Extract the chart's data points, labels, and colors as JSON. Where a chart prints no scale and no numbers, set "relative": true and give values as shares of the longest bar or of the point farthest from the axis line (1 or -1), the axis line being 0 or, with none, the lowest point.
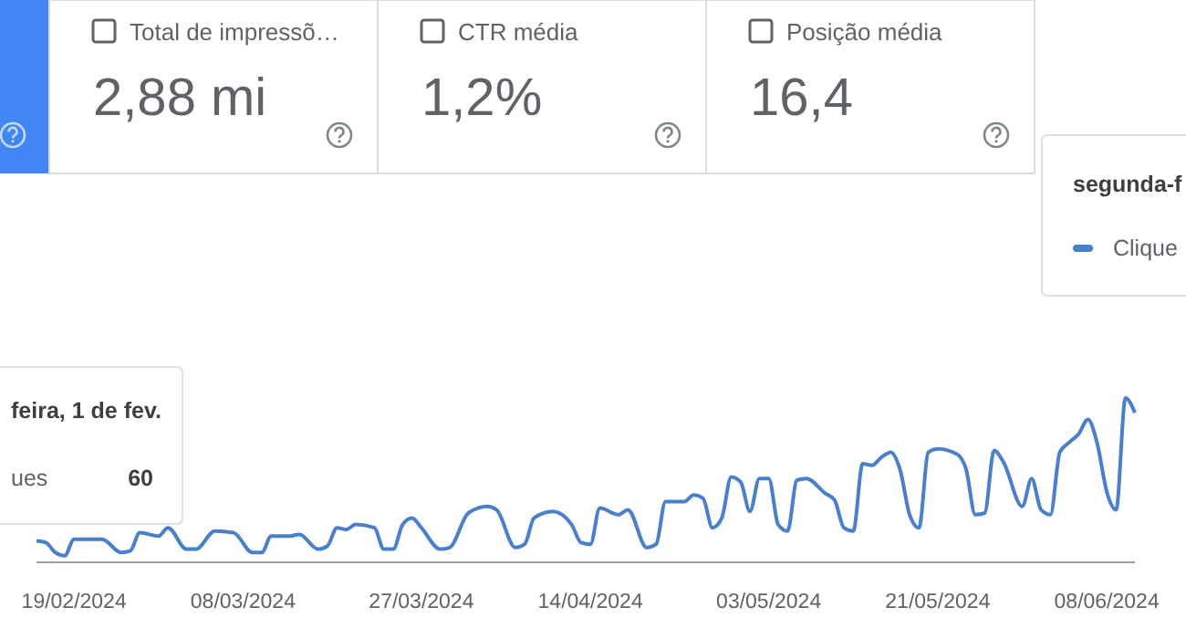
{
  "chart_data": {
    "type": "line",
    "relative": true,
    "xlim": [
      "2024-02-15",
      "2024-06-11"
    ],
    "xticks": [
      {
        "value": "2024-02-19",
        "label": "19/02/2024"
      },
      {
        "value": "2024-03-08",
        "label": "08/03/2024"
      },
      {
        "value": "2024-03-27",
        "label": "27/03/2024"
      },
      {
        "value": "2024-04-14",
        "label": "14/04/2024"
      },
      {
        "value": "2024-05-03",
        "label": "03/05/2024"
      },
      {
        "value": "2024-05-21",
        "label": "21/05/2024"
      },
      {
        "value": "2024-06-08",
        "label": "08/06/2024"
      }
    ],
    "annotations": [
      "Total de impressõ…",
      "2,88 mi",
      "CTR média",
      "1,2%",
      "Posição média",
      "16,4",
      "feira, 1 de fev.",
      "ues",
      "60",
      "segunda-f",
      "Clique"
    ],
    "series": [
      {
        "color": "#4a7fcb",
        "x": [
          "2024-02-15",
          "2024-02-16",
          "2024-02-17",
          "2024-02-18",
          "2024-02-19",
          "2024-02-22",
          "2024-02-24",
          "2024-02-25",
          "2024-02-26",
          "2024-02-28",
          "2024-02-29",
          "2024-03-02",
          "2024-03-03",
          "2024-03-05",
          "2024-03-07",
          "2024-03-09",
          "2024-03-10",
          "2024-03-11",
          "2024-03-13",
          "2024-03-14",
          "2024-03-16",
          "2024-03-17",
          "2024-03-18",
          "2024-03-19",
          "2024-03-20",
          "2024-03-22",
          "2024-03-23",
          "2024-03-24",
          "2024-03-25",
          "2024-03-26",
          "2024-03-27",
          "2024-03-29",
          "2024-03-30",
          "2024-04-01",
          "2024-04-03",
          "2024-04-04",
          "2024-04-06",
          "2024-04-07",
          "2024-04-08",
          "2024-04-10",
          "2024-04-12",
          "2024-04-13",
          "2024-04-14",
          "2024-04-15",
          "2024-04-17",
          "2024-04-18",
          "2024-04-20",
          "2024-04-21",
          "2024-04-22",
          "2024-04-24",
          "2024-04-25",
          "2024-04-26",
          "2024-04-27",
          "2024-04-28",
          "2024-04-29",
          "2024-04-30",
          "2024-05-01",
          "2024-05-02",
          "2024-05-03",
          "2024-05-04",
          "2024-05-05",
          "2024-05-06",
          "2024-05-07",
          "2024-05-09",
          "2024-05-10",
          "2024-05-11",
          "2024-05-12",
          "2024-05-13",
          "2024-05-14",
          "2024-05-15",
          "2024-05-16",
          "2024-05-17",
          "2024-05-18",
          "2024-05-19",
          "2024-05-20",
          "2024-05-21",
          "2024-05-23",
          "2024-05-24",
          "2024-05-25",
          "2024-05-26",
          "2024-05-27",
          "2024-05-28",
          "2024-05-30",
          "2024-05-31",
          "2024-06-01",
          "2024-06-02",
          "2024-06-03",
          "2024-06-04",
          "2024-06-05",
          "2024-06-06",
          "2024-06-07",
          "2024-06-08",
          "2024-06-09",
          "2024-06-10",
          "2024-06-11"
        ],
        "values": [
          0.13,
          0.12,
          0.06,
          0.04,
          0.14,
          0.14,
          0.06,
          0.07,
          0.18,
          0.16,
          0.21,
          0.08,
          0.08,
          0.19,
          0.18,
          0.06,
          0.06,
          0.16,
          0.16,
          0.17,
          0.08,
          0.1,
          0.21,
          0.2,
          0.23,
          0.21,
          0.08,
          0.08,
          0.23,
          0.27,
          0.21,
          0.08,
          0.09,
          0.3,
          0.34,
          0.32,
          0.09,
          0.11,
          0.27,
          0.31,
          0.23,
          0.12,
          0.11,
          0.33,
          0.29,
          0.32,
          0.09,
          0.11,
          0.37,
          0.37,
          0.41,
          0.39,
          0.21,
          0.27,
          0.52,
          0.49,
          0.31,
          0.51,
          0.51,
          0.23,
          0.19,
          0.5,
          0.51,
          0.42,
          0.38,
          0.21,
          0.19,
          0.6,
          0.59,
          0.64,
          0.67,
          0.56,
          0.29,
          0.21,
          0.67,
          0.69,
          0.66,
          0.57,
          0.29,
          0.3,
          0.68,
          0.61,
          0.34,
          0.51,
          0.32,
          0.29,
          0.67,
          0.73,
          0.78,
          0.87,
          0.72,
          0.43,
          0.32,
          1,
          0.91
        ]
      }
    ]
  }
}
